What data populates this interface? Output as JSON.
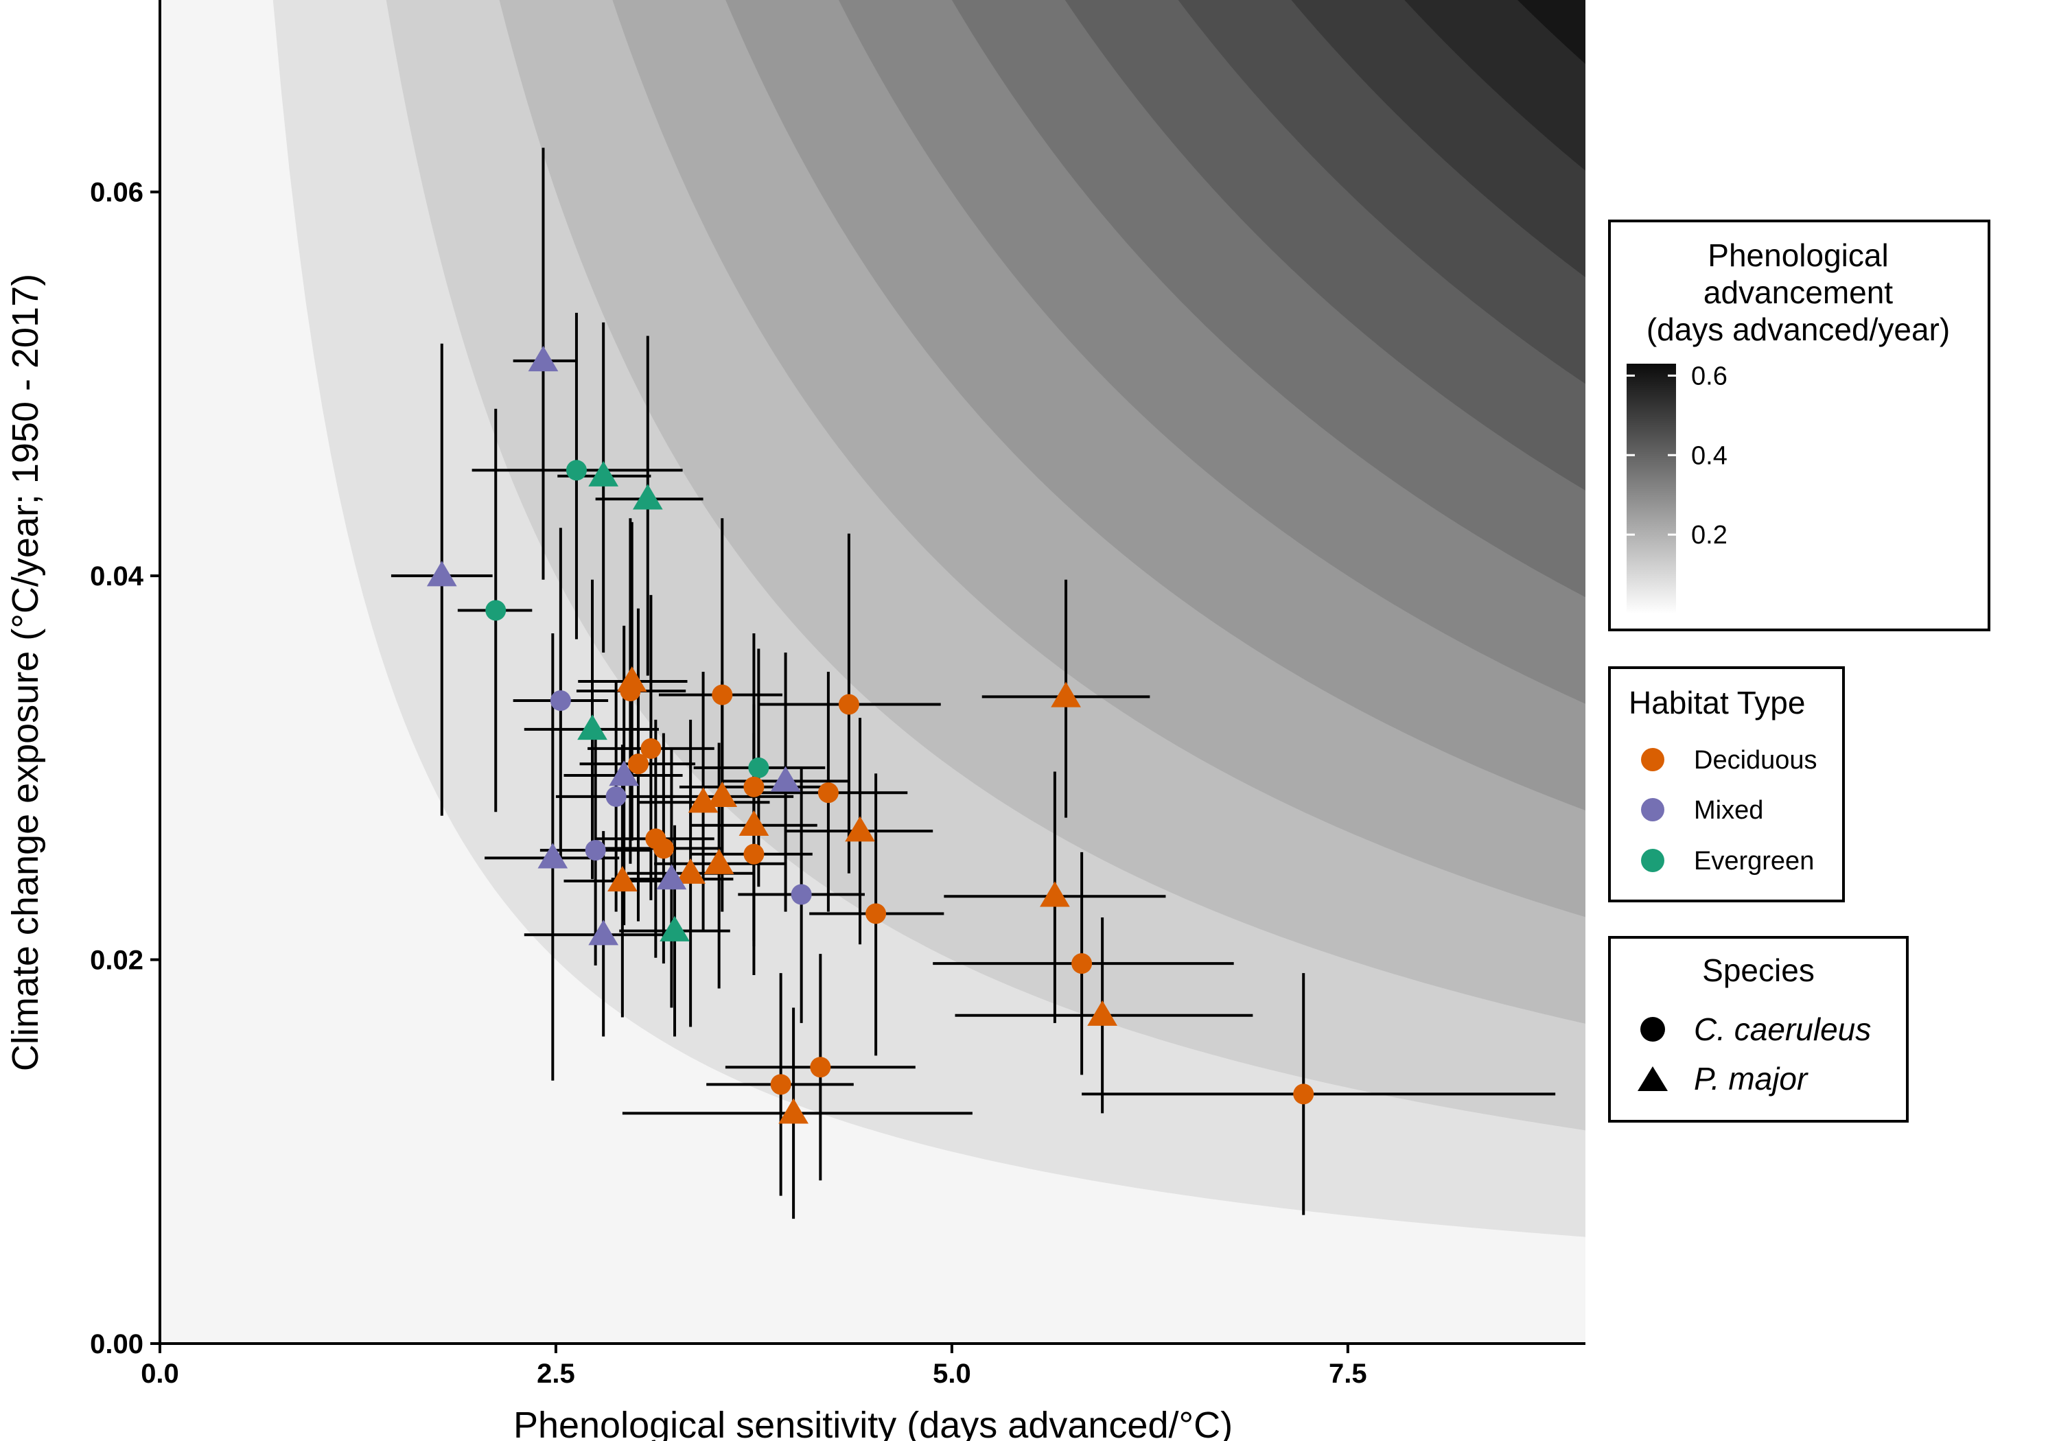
{
  "chart_data": {
    "type": "scatter",
    "xlabel": "Phenological sensitivity (days advanced/°C)",
    "ylabel": "Climate change exposure (°C/year; 1950 - 2017)",
    "xlim": [
      0,
      9
    ],
    "ylim": [
      0,
      0.07
    ],
    "x_ticks": [
      "0.0",
      "2.5",
      "5.0",
      "7.5"
    ],
    "x_tick_values": [
      0,
      2.5,
      5.0,
      7.5
    ],
    "y_ticks": [
      "0.00",
      "0.02",
      "0.04",
      "0.06"
    ],
    "y_tick_values": [
      0,
      0.02,
      0.04,
      0.06
    ],
    "grid": false,
    "background": {
      "type": "heatmap",
      "description_value": "x * y",
      "range": [
        0,
        0.63
      ],
      "bands": 0.05
    },
    "legends": {
      "fill": {
        "title": [
          "Phenological",
          "advancement",
          "(days advanced/year)"
        ],
        "ticks": [
          "0.6",
          "0.4",
          "0.2"
        ],
        "tick_values": [
          0.6,
          0.4,
          0.2
        ],
        "range": [
          0,
          0.63
        ]
      },
      "habitat": {
        "title": "Habitat Type",
        "entries": [
          {
            "label": "Deciduous",
            "color": "#D95F02"
          },
          {
            "label": "Mixed",
            "color": "#7570B3"
          },
          {
            "label": "Evergreen",
            "color": "#1B9E77"
          }
        ]
      },
      "species": {
        "title": "Species",
        "entries": [
          {
            "label": "C. caeruleus",
            "shape": "circle"
          },
          {
            "label": "P. major",
            "shape": "triangle"
          }
        ]
      }
    },
    "points": [
      {
        "x": 2.42,
        "y": 0.0512,
        "xerr": [
          2.23,
          2.63
        ],
        "yerr": [
          0.0398,
          0.0623
        ],
        "habitat": "Mixed",
        "species": "P. major"
      },
      {
        "x": 2.63,
        "y": 0.0455,
        "xerr": [
          1.97,
          3.3
        ],
        "yerr": [
          0.0367,
          0.0537
        ],
        "habitat": "Evergreen",
        "species": "C. caeruleus"
      },
      {
        "x": 2.8,
        "y": 0.0452,
        "xerr": [
          2.51,
          3.1
        ],
        "yerr": [
          0.036,
          0.0532
        ],
        "habitat": "Evergreen",
        "species": "P. major"
      },
      {
        "x": 3.08,
        "y": 0.044,
        "xerr": [
          2.75,
          3.43
        ],
        "yerr": [
          0.0348,
          0.0525
        ],
        "habitat": "Evergreen",
        "species": "P. major"
      },
      {
        "x": 1.78,
        "y": 0.04,
        "xerr": [
          1.46,
          2.1
        ],
        "yerr": [
          0.0275,
          0.0521
        ],
        "habitat": "Mixed",
        "species": "P. major"
      },
      {
        "x": 2.12,
        "y": 0.0382,
        "xerr": [
          1.88,
          2.35
        ],
        "yerr": [
          0.0277,
          0.0487
        ],
        "habitat": "Evergreen",
        "species": "C. caeruleus"
      },
      {
        "x": 2.53,
        "y": 0.0335,
        "xerr": [
          2.23,
          2.83
        ],
        "yerr": [
          0.0249,
          0.0425
        ],
        "habitat": "Mixed",
        "species": "C. caeruleus"
      },
      {
        "x": 2.97,
        "y": 0.034,
        "xerr": [
          2.63,
          3.32
        ],
        "yerr": [
          0.025,
          0.043
        ],
        "habitat": "Deciduous",
        "species": "C. caeruleus"
      },
      {
        "x": 2.98,
        "y": 0.0345,
        "xerr": [
          2.64,
          3.33
        ],
        "yerr": [
          0.0262,
          0.0428
        ],
        "habitat": "Deciduous",
        "species": "P. major"
      },
      {
        "x": 3.55,
        "y": 0.0338,
        "xerr": [
          3.15,
          3.93
        ],
        "yerr": [
          0.0252,
          0.043
        ],
        "habitat": "Deciduous",
        "species": "C. caeruleus"
      },
      {
        "x": 4.35,
        "y": 0.0333,
        "xerr": [
          3.78,
          4.93
        ],
        "yerr": [
          0.0245,
          0.0422
        ],
        "habitat": "Deciduous",
        "species": "C. caeruleus"
      },
      {
        "x": 5.72,
        "y": 0.0337,
        "xerr": [
          5.19,
          6.25
        ],
        "yerr": [
          0.0274,
          0.0398
        ],
        "habitat": "Deciduous",
        "species": "P. major"
      },
      {
        "x": 2.73,
        "y": 0.032,
        "xerr": [
          2.3,
          3.15
        ],
        "yerr": [
          0.0242,
          0.0398
        ],
        "habitat": "Evergreen",
        "species": "P. major"
      },
      {
        "x": 3.1,
        "y": 0.031,
        "xerr": [
          2.7,
          3.5
        ],
        "yerr": [
          0.0231,
          0.039
        ],
        "habitat": "Deciduous",
        "species": "C. caeruleus"
      },
      {
        "x": 3.02,
        "y": 0.0302,
        "xerr": [
          2.65,
          3.38
        ],
        "yerr": [
          0.022,
          0.0383
        ],
        "habitat": "Deciduous",
        "species": "C. caeruleus"
      },
      {
        "x": 3.78,
        "y": 0.03,
        "xerr": [
          3.37,
          4.2
        ],
        "yerr": [
          0.0238,
          0.0362
        ],
        "habitat": "Evergreen",
        "species": "C. caeruleus"
      },
      {
        "x": 2.93,
        "y": 0.0296,
        "xerr": [
          2.55,
          3.3
        ],
        "yerr": [
          0.0218,
          0.0374
        ],
        "habitat": "Mixed",
        "species": "P. major"
      },
      {
        "x": 3.95,
        "y": 0.0293,
        "xerr": [
          3.55,
          4.35
        ],
        "yerr": [
          0.0225,
          0.036
        ],
        "habitat": "Mixed",
        "species": "P. major"
      },
      {
        "x": 3.75,
        "y": 0.029,
        "xerr": [
          3.28,
          4.22
        ],
        "yerr": [
          0.021,
          0.037
        ],
        "habitat": "Deciduous",
        "species": "C. caeruleus"
      },
      {
        "x": 2.88,
        "y": 0.0285,
        "xerr": [
          2.5,
          3.25
        ],
        "yerr": [
          0.0225,
          0.0345
        ],
        "habitat": "Mixed",
        "species": "C. caeruleus"
      },
      {
        "x": 4.22,
        "y": 0.0287,
        "xerr": [
          3.72,
          4.72
        ],
        "yerr": [
          0.0225,
          0.035
        ],
        "habitat": "Deciduous",
        "species": "C. caeruleus"
      },
      {
        "x": 3.55,
        "y": 0.0285,
        "xerr": [
          3.1,
          4.0
        ],
        "yerr": [
          0.0225,
          0.0345
        ],
        "habitat": "Deciduous",
        "species": "P. major"
      },
      {
        "x": 3.43,
        "y": 0.0282,
        "xerr": [
          3.02,
          3.85
        ],
        "yerr": [
          0.0215,
          0.035
        ],
        "habitat": "Deciduous",
        "species": "P. major"
      },
      {
        "x": 3.75,
        "y": 0.027,
        "xerr": [
          3.35,
          4.15
        ],
        "yerr": [
          0.0207,
          0.0333
        ],
        "habitat": "Deciduous",
        "species": "P. major"
      },
      {
        "x": 4.42,
        "y": 0.0267,
        "xerr": [
          3.95,
          4.88
        ],
        "yerr": [
          0.0208,
          0.0326
        ],
        "habitat": "Deciduous",
        "species": "P. major"
      },
      {
        "x": 3.13,
        "y": 0.0263,
        "xerr": [
          2.75,
          3.5
        ],
        "yerr": [
          0.0201,
          0.0325
        ],
        "habitat": "Deciduous",
        "species": "C. caeruleus"
      },
      {
        "x": 3.18,
        "y": 0.0258,
        "xerr": [
          2.8,
          3.55
        ],
        "yerr": [
          0.0198,
          0.0318
        ],
        "habitat": "Deciduous",
        "species": "C. caeruleus"
      },
      {
        "x": 2.75,
        "y": 0.0257,
        "xerr": [
          2.4,
          3.1
        ],
        "yerr": [
          0.0197,
          0.0317
        ],
        "habitat": "Mixed",
        "species": "C. caeruleus"
      },
      {
        "x": 3.75,
        "y": 0.0255,
        "xerr": [
          3.35,
          4.12
        ],
        "yerr": [
          0.0192,
          0.0318
        ],
        "habitat": "Deciduous",
        "species": "C. caeruleus"
      },
      {
        "x": 2.48,
        "y": 0.0253,
        "xerr": [
          2.05,
          2.9
        ],
        "yerr": [
          0.0137,
          0.037
        ],
        "habitat": "Mixed",
        "species": "P. major"
      },
      {
        "x": 3.53,
        "y": 0.025,
        "xerr": [
          3.12,
          3.95
        ],
        "yerr": [
          0.0185,
          0.0313
        ],
        "habitat": "Deciduous",
        "species": "P. major"
      },
      {
        "x": 3.35,
        "y": 0.0245,
        "xerr": [
          2.95,
          3.75
        ],
        "yerr": [
          0.0165,
          0.0325
        ],
        "habitat": "Deciduous",
        "species": "P. major"
      },
      {
        "x": 3.23,
        "y": 0.0242,
        "xerr": [
          2.85,
          3.62
        ],
        "yerr": [
          0.0175,
          0.031
        ],
        "habitat": "Mixed",
        "species": "P. major"
      },
      {
        "x": 2.92,
        "y": 0.0241,
        "xerr": [
          2.55,
          3.28
        ],
        "yerr": [
          0.017,
          0.0312
        ],
        "habitat": "Deciduous",
        "species": "P. major"
      },
      {
        "x": 5.65,
        "y": 0.0233,
        "xerr": [
          4.95,
          6.35
        ],
        "yerr": [
          0.0167,
          0.0298
        ],
        "habitat": "Deciduous",
        "species": "P. major"
      },
      {
        "x": 4.05,
        "y": 0.0234,
        "xerr": [
          3.65,
          4.45
        ],
        "yerr": [
          0.0167,
          0.03
        ],
        "habitat": "Mixed",
        "species": "C. caeruleus"
      },
      {
        "x": 4.52,
        "y": 0.0224,
        "xerr": [
          4.1,
          4.95
        ],
        "yerr": [
          0.015,
          0.0297
        ],
        "habitat": "Deciduous",
        "species": "C. caeruleus"
      },
      {
        "x": 2.8,
        "y": 0.0213,
        "xerr": [
          2.3,
          3.3
        ],
        "yerr": [
          0.016,
          0.0267
        ],
        "habitat": "Mixed",
        "species": "P. major"
      },
      {
        "x": 3.25,
        "y": 0.0215,
        "xerr": [
          2.9,
          3.6
        ],
        "yerr": [
          0.016,
          0.027
        ],
        "habitat": "Evergreen",
        "species": "P. major"
      },
      {
        "x": 5.82,
        "y": 0.0198,
        "xerr": [
          4.88,
          6.78
        ],
        "yerr": [
          0.014,
          0.0256
        ],
        "habitat": "Deciduous",
        "species": "C. caeruleus"
      },
      {
        "x": 5.95,
        "y": 0.0171,
        "xerr": [
          5.02,
          6.9
        ],
        "yerr": [
          0.012,
          0.0222
        ],
        "habitat": "Deciduous",
        "species": "P. major"
      },
      {
        "x": 4.17,
        "y": 0.0144,
        "xerr": [
          3.57,
          4.77
        ],
        "yerr": [
          0.0085,
          0.0203
        ],
        "habitat": "Deciduous",
        "species": "C. caeruleus"
      },
      {
        "x": 3.92,
        "y": 0.0135,
        "xerr": [
          3.45,
          4.38
        ],
        "yerr": [
          0.0077,
          0.0193
        ],
        "habitat": "Deciduous",
        "species": "C. caeruleus"
      },
      {
        "x": 7.22,
        "y": 0.013,
        "xerr": [
          5.82,
          8.81
        ],
        "yerr": [
          0.0067,
          0.0193
        ],
        "habitat": "Deciduous",
        "species": "C. caeruleus"
      },
      {
        "x": 4.0,
        "y": 0.012,
        "xerr": [
          2.92,
          5.13
        ],
        "yerr": [
          0.0065,
          0.0175
        ],
        "habitat": "Deciduous",
        "species": "P. major"
      }
    ]
  }
}
